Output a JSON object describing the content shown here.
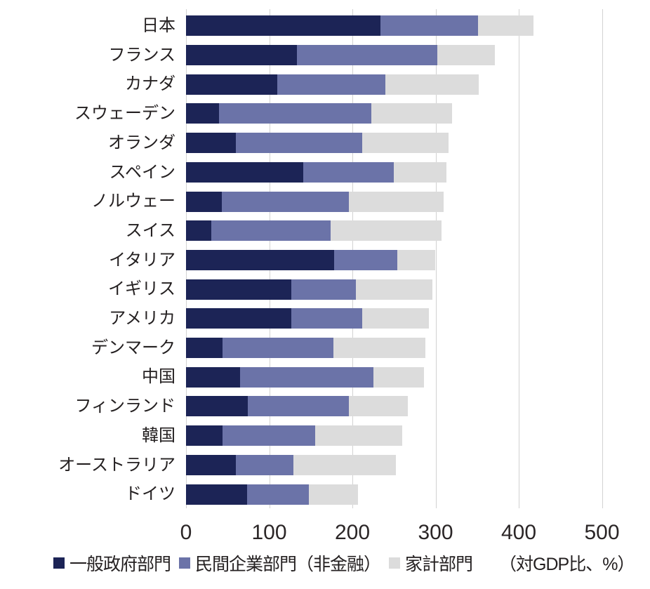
{
  "chart_data": {
    "type": "bar",
    "orientation": "horizontal",
    "stacked": true,
    "title": "",
    "xlabel": "",
    "ylabel": "",
    "unit_label": "（対GDP比、%）",
    "xlim": [
      0,
      500
    ],
    "x_ticks": [
      "0",
      "100",
      "200",
      "300",
      "400",
      "500"
    ],
    "x_tick_values": [
      0,
      100,
      200,
      300,
      400,
      500
    ],
    "grid": true,
    "legend_position": "bottom",
    "categories": [
      "日本",
      "フランス",
      "カナダ",
      "スウェーデン",
      "オランダ",
      "スペイン",
      "ノルウェー",
      "スイス",
      "イタリア",
      "イギリス",
      "アメリカ",
      "デンマーク",
      "中国",
      "フィンランド",
      "韓国",
      "オーストラリア",
      "ドイツ"
    ],
    "series": [
      {
        "name": "一般政府部門",
        "color": "#1c2456",
        "values": [
          234,
          133,
          110,
          40,
          60,
          141,
          43,
          30,
          178,
          127,
          127,
          44,
          65,
          74,
          44,
          60,
          73
        ]
      },
      {
        "name": "民間企業部門（非金融）",
        "color": "#6b73a8",
        "values": [
          117,
          169,
          130,
          183,
          152,
          109,
          153,
          144,
          76,
          77,
          85,
          133,
          160,
          122,
          111,
          69,
          75
        ]
      },
      {
        "name": "家計部門",
        "color": "#dcdcdc",
        "values": [
          67,
          69,
          112,
          97,
          104,
          63,
          114,
          133,
          46,
          92,
          80,
          111,
          61,
          71,
          105,
          123,
          59
        ]
      }
    ]
  },
  "style": {
    "gridline_color": "#d2d2d2",
    "label_color": "#242021",
    "tick_color": "#2b2627",
    "background": "#ffffff"
  }
}
